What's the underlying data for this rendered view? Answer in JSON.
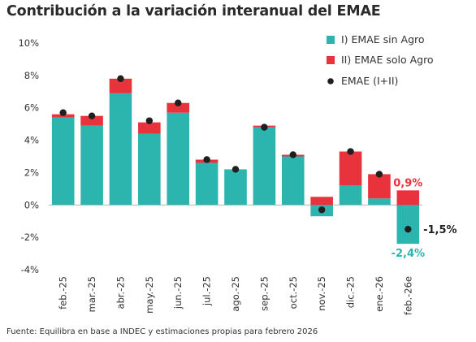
{
  "chart_data": {
    "type": "bar",
    "title": "Contribución a la variación interanual del EMAE",
    "categories": [
      "feb.-25",
      "mar.-25",
      "abr.-25",
      "may.-25",
      "jun.-25",
      "jul.-25",
      "ago.-25",
      "sep.-25",
      "oct.-25",
      "nov.-25",
      "dic.-25",
      "ene.-26",
      "feb.-26e"
    ],
    "series": [
      {
        "name": "I) EMAE sin Agro",
        "color": "#2bb5ae",
        "values": [
          5.4,
          4.9,
          6.9,
          4.4,
          5.7,
          2.6,
          2.2,
          4.8,
          3.0,
          -0.7,
          1.2,
          0.4,
          -2.4
        ]
      },
      {
        "name": "II) EMAE solo Agro",
        "color": "#e8333c",
        "values": [
          0.2,
          0.6,
          0.9,
          0.7,
          0.6,
          0.2,
          0.0,
          0.1,
          0.1,
          0.5,
          2.1,
          1.5,
          0.9
        ]
      },
      {
        "name": "EMAE (I+II)",
        "color": "#1f1f1f",
        "values": [
          5.7,
          5.5,
          7.8,
          5.2,
          6.3,
          2.8,
          2.2,
          4.8,
          3.1,
          -0.3,
          3.3,
          1.9,
          -1.5
        ]
      }
    ],
    "ylim": [
      -4,
      10
    ],
    "yticks": [
      "-4%",
      "-2%",
      "0%",
      "2%",
      "4%",
      "6%",
      "8%",
      "10%"
    ],
    "grid": false,
    "legend_position": "top-right",
    "annotations": [
      {
        "text": "0,9%",
        "color": "#e8333c"
      },
      {
        "text": "-1,5%",
        "color": "#1f1f1f"
      },
      {
        "text": "-2,4%",
        "color": "#2bb5ae"
      }
    ],
    "source": "Fuente: Equilibra en base a INDEC y estimaciones propias para febrero 2026"
  }
}
